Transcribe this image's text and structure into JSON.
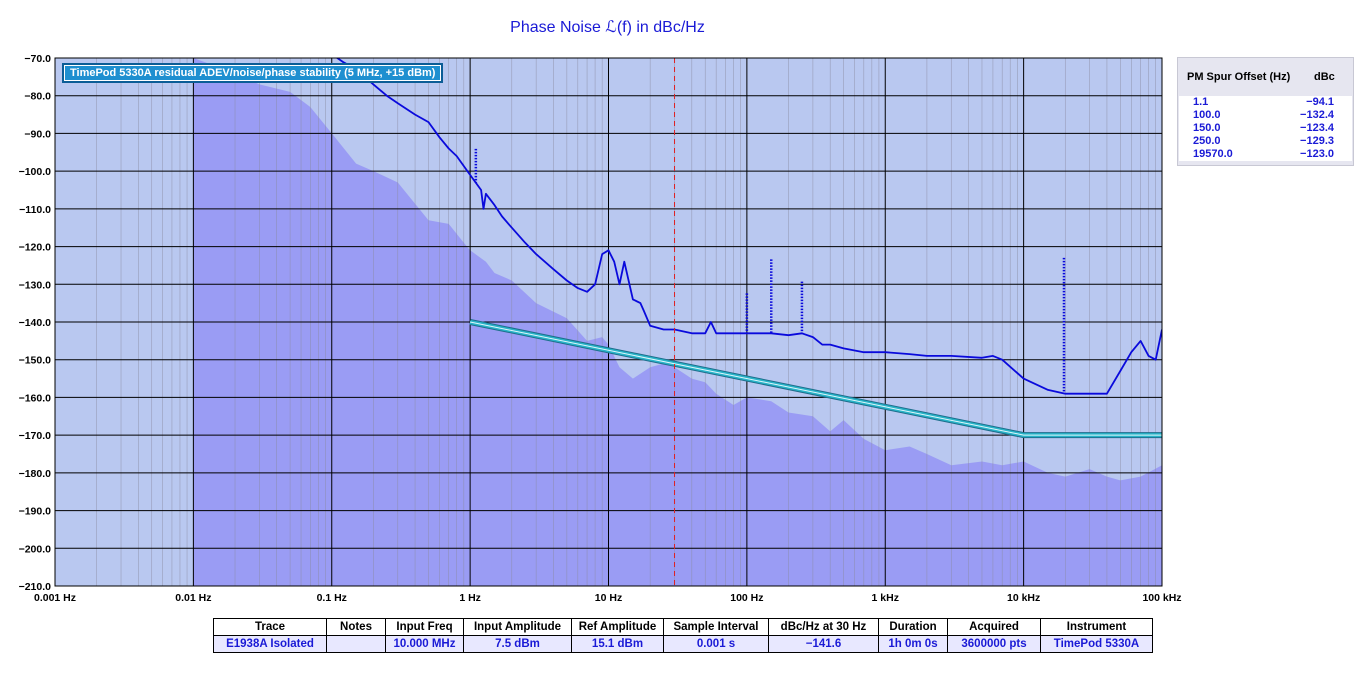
{
  "title": "Phase Noise ℒ(f) in dBc/Hz",
  "legend_box": "TimePod 5330A residual ADEV/noise/phase stability (5 MHz, +15 dBm)",
  "spur_table": {
    "col_offset": "PM Spur Offset (Hz)",
    "col_dbc": "dBc",
    "rows": [
      {
        "offset": "1.1",
        "dbc": "−94.1"
      },
      {
        "offset": "100.0",
        "dbc": "−132.4"
      },
      {
        "offset": "150.0",
        "dbc": "−123.4"
      },
      {
        "offset": "250.0",
        "dbc": "−129.3"
      },
      {
        "offset": "19570.0",
        "dbc": "−123.0"
      }
    ]
  },
  "info_table": {
    "headers": [
      "Trace",
      "Notes",
      "Input Freq",
      "Input Amplitude",
      "Ref Amplitude",
      "Sample Interval",
      "dBc/Hz at 30 Hz",
      "Duration",
      "Acquired",
      "Instrument"
    ],
    "values": [
      "E1938A Isolated",
      "",
      "10.000 MHz",
      "7.5 dBm",
      "15.1 dBm",
      "0.001 s",
      "−141.6",
      "1h 0m 0s",
      "3600000 pts",
      "TimePod 5330A"
    ]
  },
  "colors": {
    "background": "#b9c8f0",
    "grid_major": "#000000",
    "grid_minor": "#8a8aa0",
    "noise_floor_fill": "#9a9cf4",
    "trace": "#0a0adc",
    "mask_line": "#28b4c8",
    "marker": "#e02020"
  },
  "chart_data": {
    "type": "line",
    "title": "Phase Noise ℒ(f) in dBc/Hz",
    "xscale": "log",
    "xlim": [
      0.001,
      100000
    ],
    "ylim": [
      -210,
      -70
    ],
    "x_tick_labels": [
      "0.001 Hz",
      "0.01 Hz",
      "0.1 Hz",
      "1 Hz",
      "10 Hz",
      "100 Hz",
      "1 kHz",
      "10 kHz",
      "100 kHz"
    ],
    "y_tick_labels": [
      "−70.0",
      "−80.0",
      "−90.0",
      "−100.0",
      "−110.0",
      "−120.0",
      "−130.0",
      "−140.0",
      "−150.0",
      "−160.0",
      "−170.0",
      "−180.0",
      "−190.0",
      "−200.0",
      "−210.0"
    ],
    "grid": true,
    "marker_x": 30,
    "series": [
      {
        "name": "E1938A Isolated",
        "role": "trace",
        "x": [
          0.1,
          0.12,
          0.15,
          0.2,
          0.25,
          0.3,
          0.4,
          0.5,
          0.6,
          0.7,
          0.8,
          1.0,
          1.2,
          1.25,
          1.3,
          1.5,
          1.7,
          2.0,
          2.5,
          3.0,
          4.0,
          5.0,
          6.0,
          7.0,
          8.0,
          9.0,
          10.0,
          11.0,
          12.0,
          13.0,
          15.0,
          17.0,
          18.0,
          20.0,
          25.0,
          30.0,
          40.0,
          50.0,
          55.0,
          60.0,
          80.0,
          100.0,
          120.0,
          150.0,
          200.0,
          250.0,
          300.0,
          350.0,
          400.0,
          500.0,
          700.0,
          1000.0,
          1500.0,
          2000.0,
          3000.0,
          5000.0,
          6000.0,
          7000.0,
          10000.0,
          15000.0,
          20000.0,
          30000.0,
          40000.0,
          50000.0,
          60000.0,
          70000.0,
          80000.0,
          90000.0,
          100000.0
        ],
        "y": [
          -69.0,
          -71.0,
          -73.0,
          -77.0,
          -80.0,
          -82.0,
          -85.0,
          -87.0,
          -91.0,
          -94.0,
          -96.0,
          -101.0,
          -105.0,
          -110.0,
          -106.0,
          -109.0,
          -112.0,
          -115.0,
          -119.0,
          -122.0,
          -126.0,
          -129.0,
          -131.0,
          -132.0,
          -130.0,
          -122.0,
          -121.0,
          -124.0,
          -130.0,
          -124.0,
          -134.0,
          -135.0,
          -137.0,
          -141.0,
          -142.0,
          -142.0,
          -143.0,
          -143.0,
          -140.0,
          -143.0,
          -143.0,
          -143.0,
          -143.0,
          -143.0,
          -143.5,
          -143.0,
          -144.0,
          -146.0,
          -146.0,
          -147.0,
          -148.0,
          -148.0,
          -148.5,
          -149.0,
          -149.0,
          -149.5,
          -149.0,
          -150.0,
          -155.0,
          -158.0,
          -159.0,
          -159.0,
          -159.0,
          -153.0,
          -148.0,
          -145.0,
          -149.0,
          -150.0,
          -142.0
        ]
      },
      {
        "name": "TimePod 5330A residual ADEV/noise/phase stability (5 MHz, +15 dBm)",
        "role": "noise_floor",
        "x": [
          0.01,
          0.02,
          0.03,
          0.05,
          0.07,
          0.1,
          0.15,
          0.2,
          0.3,
          0.5,
          0.7,
          0.9,
          1.0,
          1.3,
          1.5,
          2.0,
          3.0,
          5.0,
          7.0,
          9.0,
          10.0,
          12.0,
          15.0,
          20.0,
          25.0,
          30.0,
          40.0,
          50.0,
          60.0,
          80.0,
          100.0,
          150.0,
          200.0,
          300.0,
          400.0,
          500.0,
          700.0,
          1000.0,
          1500.0,
          2000.0,
          3000.0,
          5000.0,
          7000.0,
          10000.0,
          15000.0,
          20000.0,
          30000.0,
          40000.0,
          50000.0,
          70000.0,
          100000.0
        ],
        "y": [
          -70.0,
          -74.0,
          -77.0,
          -79.0,
          -83.0,
          -90.0,
          -98.0,
          -100.0,
          -103.0,
          -113.0,
          -114.0,
          -119.0,
          -121.0,
          -124.0,
          -127.0,
          -129.0,
          -135.0,
          -139.0,
          -145.0,
          -144.0,
          -146.0,
          -152.0,
          -155.0,
          -152.0,
          -151.0,
          -152.0,
          -155.0,
          -156.0,
          -159.0,
          -162.0,
          -160.0,
          -161.0,
          -164.0,
          -165.0,
          -169.0,
          -166.0,
          -171.0,
          -174.0,
          -173.0,
          -175.0,
          -178.0,
          -177.0,
          -178.0,
          -177.0,
          -180.0,
          -181.0,
          -179.0,
          -181.0,
          -182.0,
          -181.0,
          -178.0
        ]
      },
      {
        "name": "",
        "role": "mask",
        "x": [
          1.0,
          10000.0,
          100000.0
        ],
        "y": [
          -140.0,
          -170.0,
          -170.0
        ]
      }
    ],
    "spurs": [
      {
        "x": 1.1,
        "y": -94.1
      },
      {
        "x": 100.0,
        "y": -132.4
      },
      {
        "x": 150.0,
        "y": -123.4
      },
      {
        "x": 250.0,
        "y": -129.3
      },
      {
        "x": 19570.0,
        "y": -123.0
      }
    ]
  }
}
